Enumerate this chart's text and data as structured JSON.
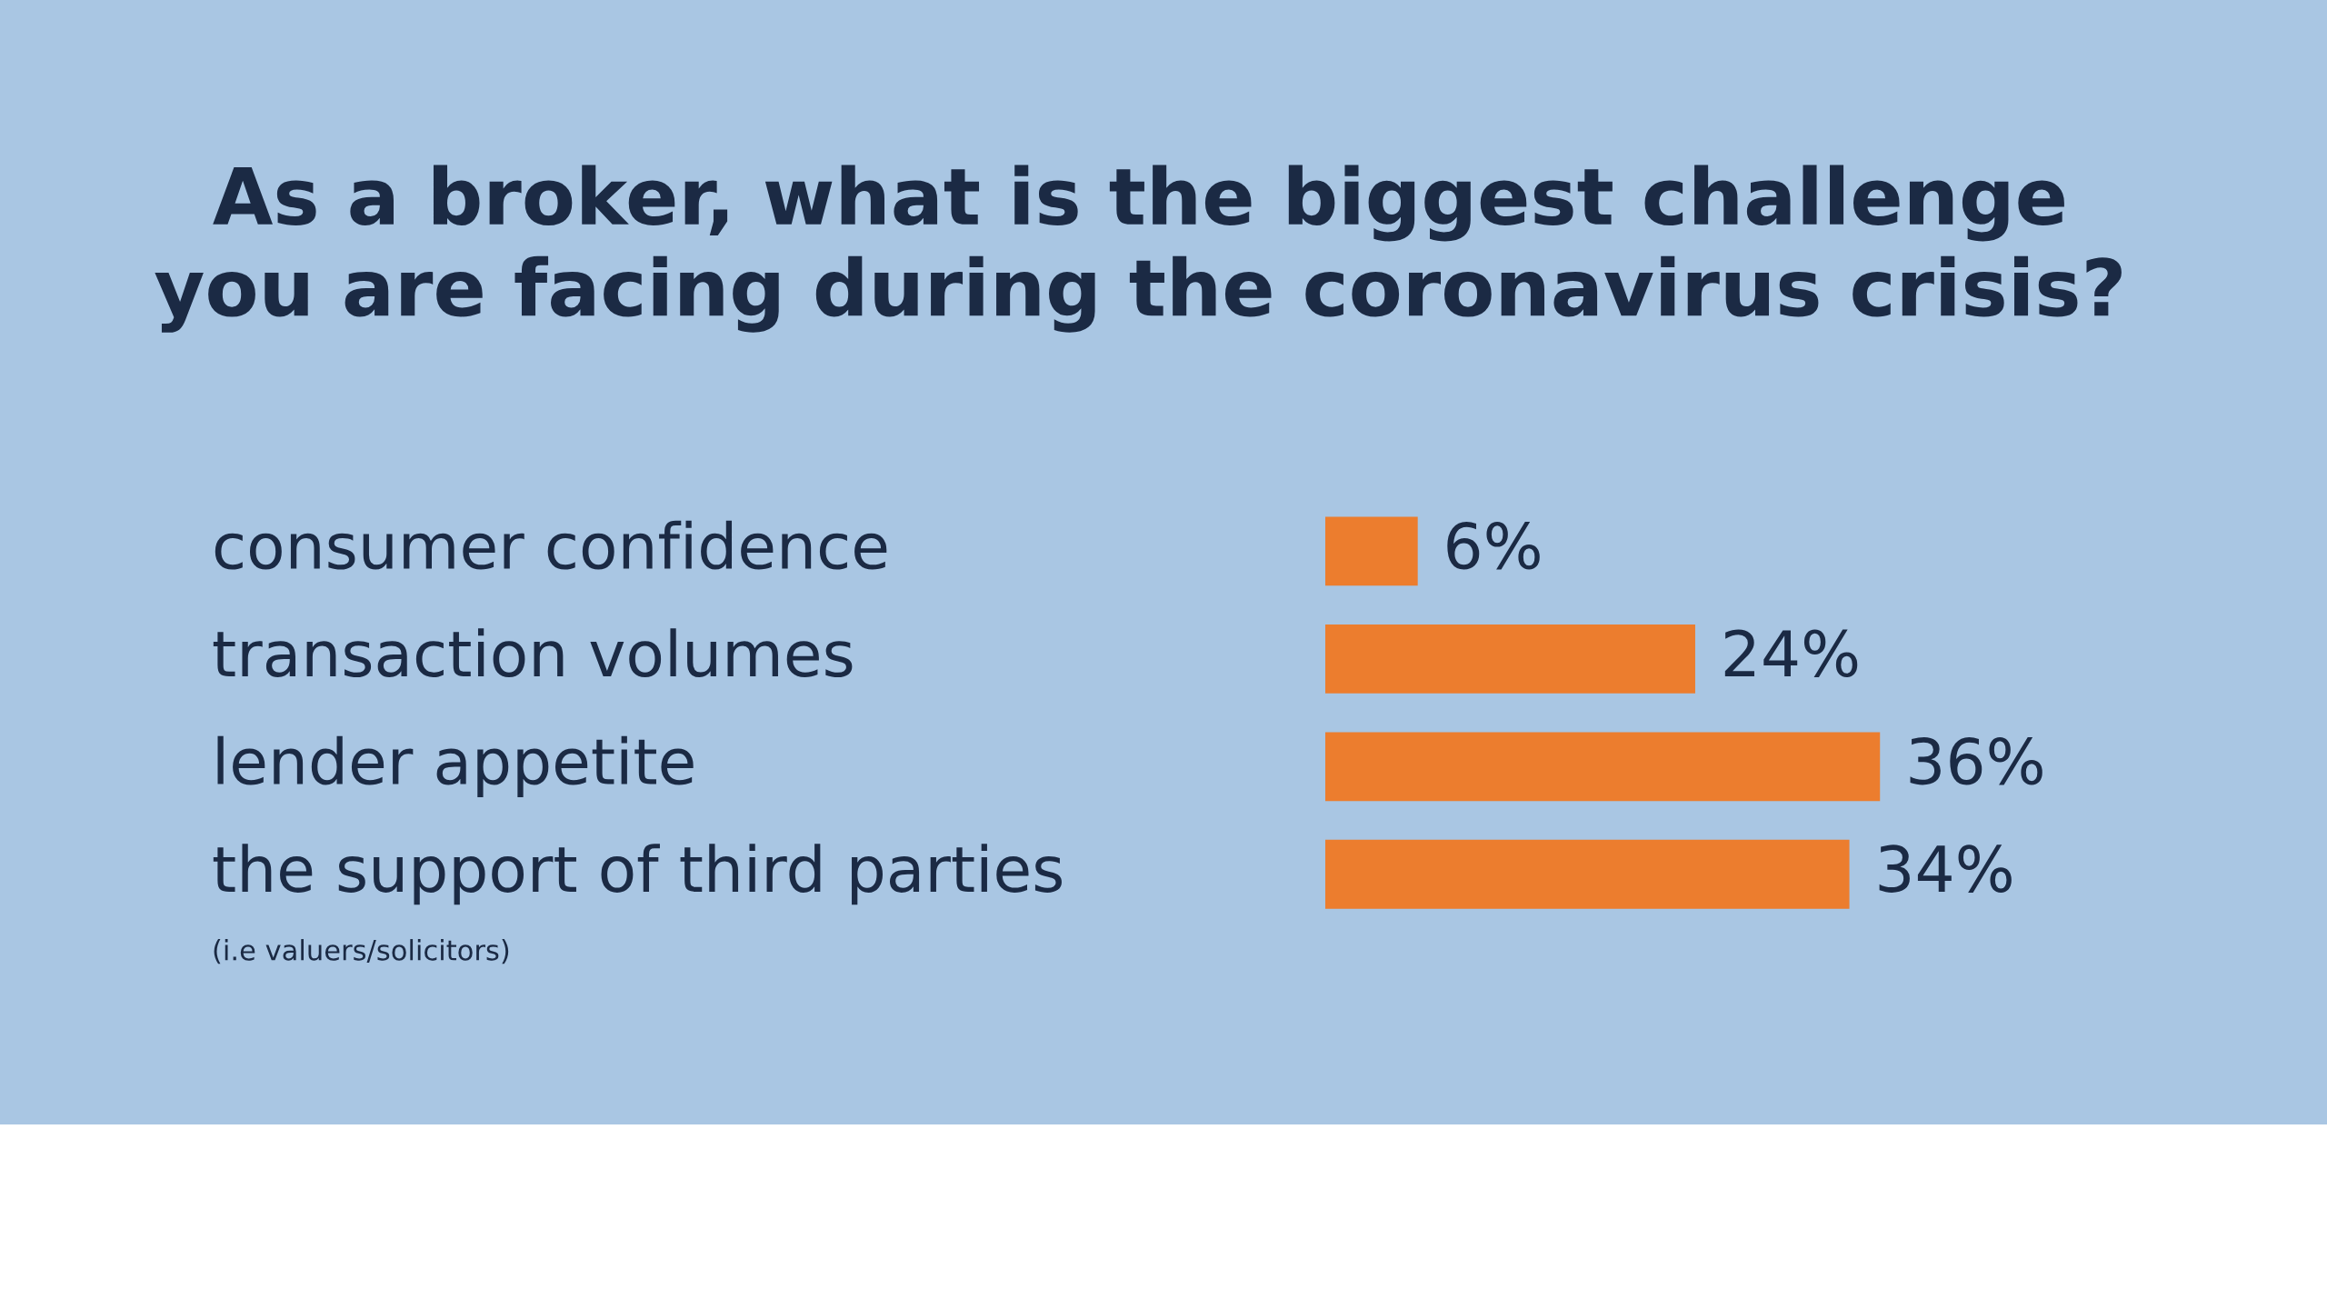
{
  "chart_data": {
    "type": "bar",
    "orientation": "horizontal",
    "title": "As a broker, what is the biggest challenge\nyou are facing during the coronavirus crisis?",
    "categories": [
      "consumer confidence",
      "transaction volumes",
      "lender appetite",
      "the support of third parties"
    ],
    "values": [
      6,
      24,
      36,
      34
    ],
    "value_labels": [
      "6%",
      "24%",
      "36%",
      "34%"
    ],
    "color": "#ec7d2e",
    "annotations": [
      "(i.e valuers/solicitors)"
    ],
    "legend": false
  }
}
